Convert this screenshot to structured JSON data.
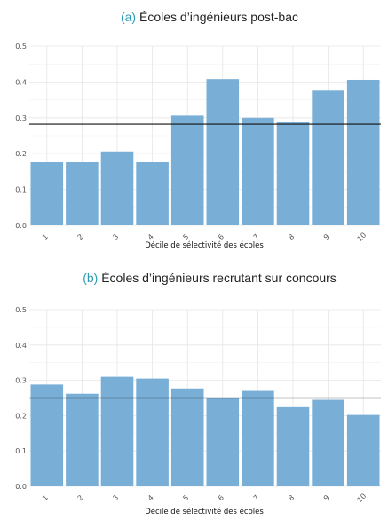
{
  "chart_data": [
    {
      "type": "bar",
      "panel_letter": "(a)",
      "title": "Écoles d’ingénieurs post-bac",
      "xlabel": "Décile de sélectivité des écoles",
      "ylabel": "",
      "categories": [
        "1",
        "2",
        "3",
        "4",
        "5",
        "6",
        "7",
        "8",
        "9",
        "10"
      ],
      "values": [
        0.177,
        0.177,
        0.206,
        0.177,
        0.306,
        0.408,
        0.3,
        0.288,
        0.378,
        0.406
      ],
      "reference_line": 0.282,
      "ylim": [
        0,
        0.5
      ],
      "yticks": [
        "0.0",
        "0.1",
        "0.2",
        "0.3",
        "0.4",
        "0.5"
      ],
      "grid": true,
      "bar_color": "#79afd6"
    },
    {
      "type": "bar",
      "panel_letter": "(b)",
      "title": "Écoles d’ingénieurs recrutant sur concours",
      "xlabel": "Décile de sélectivité des écoles",
      "ylabel": "",
      "categories": [
        "1",
        "2",
        "3",
        "4",
        "5",
        "6",
        "7",
        "8",
        "9",
        "10"
      ],
      "values": [
        0.288,
        0.262,
        0.31,
        0.305,
        0.277,
        0.25,
        0.27,
        0.224,
        0.245,
        0.202
      ],
      "reference_line": 0.25,
      "ylim": [
        0,
        0.5
      ],
      "yticks": [
        "0.0",
        "0.1",
        "0.2",
        "0.3",
        "0.4",
        "0.5"
      ],
      "grid": true,
      "bar_color": "#79afd6"
    }
  ]
}
